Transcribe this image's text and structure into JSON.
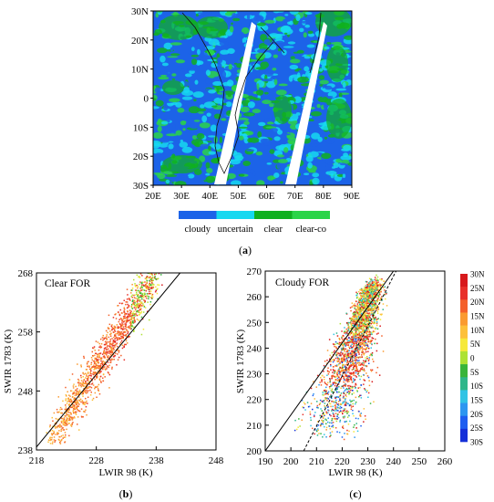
{
  "panels": {
    "a": {
      "label_open": "(",
      "label_letter": "a",
      "label_close": ")",
      "lat_ticks": [
        "30N",
        "20N",
        "10N",
        "0",
        "10S",
        "20S",
        "30S"
      ],
      "lon_ticks": [
        "20E",
        "30E",
        "40E",
        "50E",
        "60E",
        "70E",
        "80E",
        "90E"
      ],
      "legend": [
        {
          "label": "cloudy",
          "color": "#1c63e8"
        },
        {
          "label": "uncertain",
          "color": "#16d8f0"
        },
        {
          "label": "clear",
          "color": "#10b020"
        },
        {
          "label": "clear-co",
          "color": "#2ad448"
        }
      ]
    },
    "b": {
      "label_open": "(",
      "label_letter": "b",
      "label_close": ")"
    },
    "c": {
      "label_open": "(",
      "label_letter": "c",
      "label_close": ")"
    }
  },
  "chart_data": [
    {
      "type": "map",
      "x_ticks": [
        "20E",
        "30E",
        "40E",
        "50E",
        "60E",
        "70E",
        "80E",
        "90E"
      ],
      "y_ticks": [
        "30N",
        "20N",
        "10N",
        "0",
        "10S",
        "20S",
        "30S"
      ],
      "legend": [
        "cloudy",
        "uncertain",
        "clear",
        "clear-co"
      ]
    },
    {
      "type": "scatter",
      "title": "Clear FOR",
      "xlabel": "LWIR 98 (K)",
      "ylabel": "SWIR 1783 (K)",
      "xlim": [
        218,
        248
      ],
      "ylim": [
        238,
        268
      ],
      "x_ticks": [
        "218",
        "228",
        "238",
        "248"
      ],
      "y_ticks": [
        "238",
        "248",
        "258",
        "268"
      ],
      "reference_line": {
        "x": [
          218,
          242
        ],
        "y": [
          238.5,
          268
        ]
      },
      "points": {
        "x_range": [
          221,
          238
        ],
        "y_range": [
          239,
          267
        ],
        "count": 1400,
        "trend": "increasing"
      }
    },
    {
      "type": "scatter",
      "title": "Cloudy FOR",
      "xlabel": "LWIR 98 (K)",
      "ylabel": "SWIR 1783 (K)",
      "xlim": [
        190,
        260
      ],
      "ylim": [
        200,
        270
      ],
      "x_ticks": [
        "190",
        "200",
        "210",
        "220",
        "230",
        "240",
        "250",
        "260"
      ],
      "y_ticks": [
        "200",
        "210",
        "220",
        "230",
        "240",
        "250",
        "260",
        "270"
      ],
      "reference_line": {
        "x": [
          190,
          240
        ],
        "y": [
          200,
          270
        ]
      },
      "fit_line_dashed": {
        "x": [
          205,
          241
        ],
        "y": [
          200,
          270
        ]
      },
      "colorbar": {
        "labels": [
          "30N",
          "25N",
          "20N",
          "15N",
          "10N",
          "5N",
          "0",
          "5S",
          "10S",
          "15S",
          "20S",
          "25S",
          "30S"
        ],
        "colors": [
          "#d7191c",
          "#e8302a",
          "#f4602a",
          "#fa9a30",
          "#fdc03a",
          "#f6e93a",
          "#aee234",
          "#38b43a",
          "#2fb68a",
          "#31c3e4",
          "#2d96f0",
          "#1f5ef0",
          "#1530d8"
        ]
      },
      "points": {
        "x_range": [
          200,
          240
        ],
        "y_range": [
          203,
          266
        ],
        "count": 2400,
        "trend": "increasing"
      }
    }
  ]
}
